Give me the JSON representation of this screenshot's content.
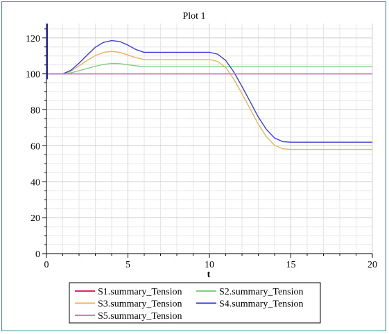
{
  "chart_data": {
    "type": "line",
    "title": "Plot 1",
    "xlabel": "t",
    "ylabel": "",
    "xlim": [
      0,
      20
    ],
    "ylim": [
      0,
      128
    ],
    "x_ticks": [
      0,
      5,
      10,
      15,
      20
    ],
    "y_ticks": [
      0,
      20,
      40,
      60,
      80,
      100,
      120
    ],
    "grid": true,
    "legend_position": "bottom-center",
    "series": [
      {
        "name": "S1.summary_Tension",
        "color": "#e0245e",
        "x": [
          0,
          0.05,
          20
        ],
        "y": [
          100,
          100,
          100
        ]
      },
      {
        "name": "S2.summary_Tension",
        "color": "#7ed07e",
        "x": [
          0,
          1,
          1.5,
          2,
          2.5,
          3,
          3.5,
          4,
          4.5,
          5,
          5.5,
          6,
          10,
          15,
          20
        ],
        "y": [
          100,
          100,
          100.6,
          101.8,
          103,
          104.3,
          105.3,
          105.8,
          105.7,
          105.1,
          104.5,
          104,
          104,
          104,
          104
        ]
      },
      {
        "name": "S3.summary_Tension",
        "color": "#e8b45a",
        "x": [
          0,
          1,
          1.5,
          2,
          2.5,
          3,
          3.5,
          4,
          4.5,
          5,
          5.5,
          6,
          10,
          10.5,
          11,
          11.5,
          12,
          12.5,
          13,
          13.5,
          14,
          14.5,
          15,
          20
        ],
        "y": [
          100,
          100,
          101.5,
          104.5,
          107.5,
          110.2,
          112,
          112.5,
          112,
          110.5,
          109,
          108,
          108,
          107,
          103.5,
          97,
          89,
          80.5,
          72,
          65,
          60.3,
          58.3,
          58,
          58
        ]
      },
      {
        "name": "S4.summary_Tension",
        "color": "#3a3ae0",
        "x": [
          0,
          1,
          1.5,
          2,
          2.5,
          3,
          3.5,
          4,
          4.5,
          5,
          5.5,
          6,
          10,
          10.5,
          11,
          11.5,
          12,
          12.5,
          13,
          13.5,
          14,
          14.5,
          15,
          20
        ],
        "y": [
          100,
          100,
          102,
          106,
          110.5,
          114.8,
          117.5,
          118.5,
          118,
          116,
          113.5,
          112,
          112,
          111,
          107.5,
          101,
          93,
          84.5,
          76,
          69,
          64.3,
          62.3,
          62,
          62
        ]
      },
      {
        "name": "S5.summary_Tension",
        "color": "#c080d0",
        "x": [
          0,
          20
        ],
        "y": [
          100,
          100
        ]
      }
    ],
    "spike": {
      "color": "#2020d0",
      "x": 0,
      "y_range": [
        97,
        128
      ]
    }
  }
}
